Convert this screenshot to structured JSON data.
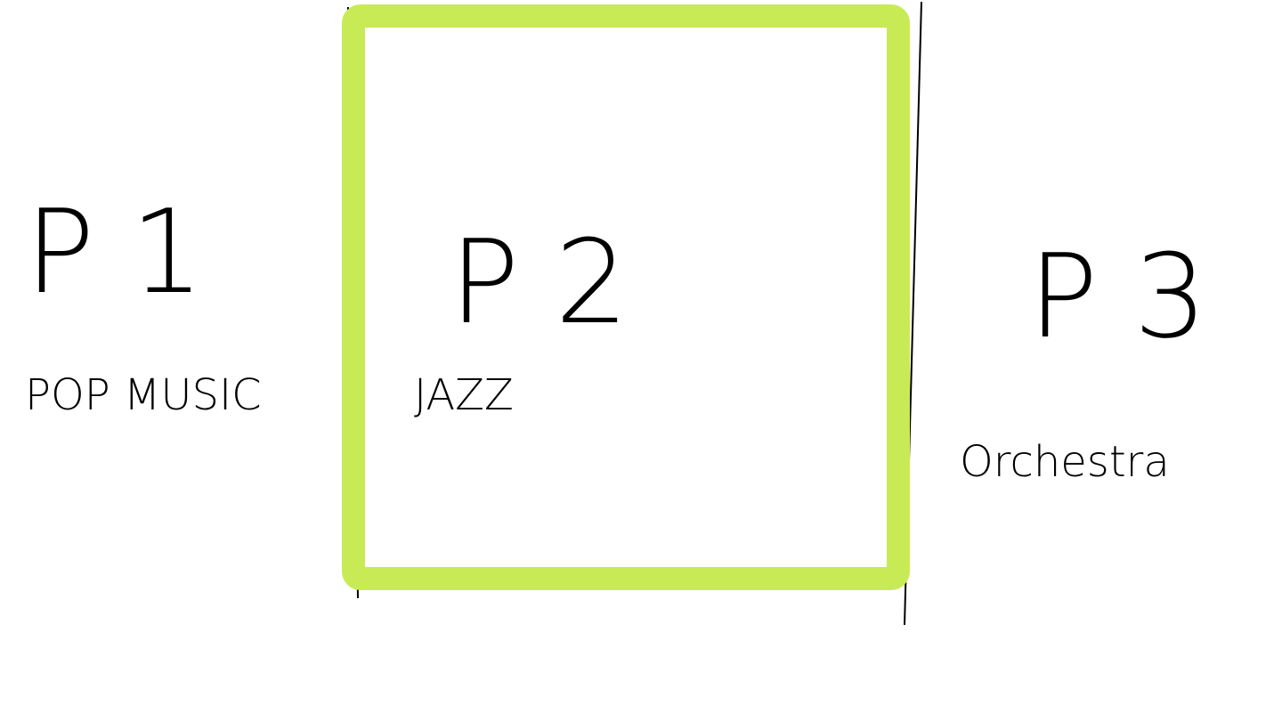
{
  "panels": [
    {
      "label": "P1",
      "genre": "POP MUSIC",
      "selected": false
    },
    {
      "label": "P2",
      "genre": "JAZZ",
      "selected": true
    },
    {
      "label": "P3",
      "genre": "Orchestra",
      "selected": false
    }
  ]
}
